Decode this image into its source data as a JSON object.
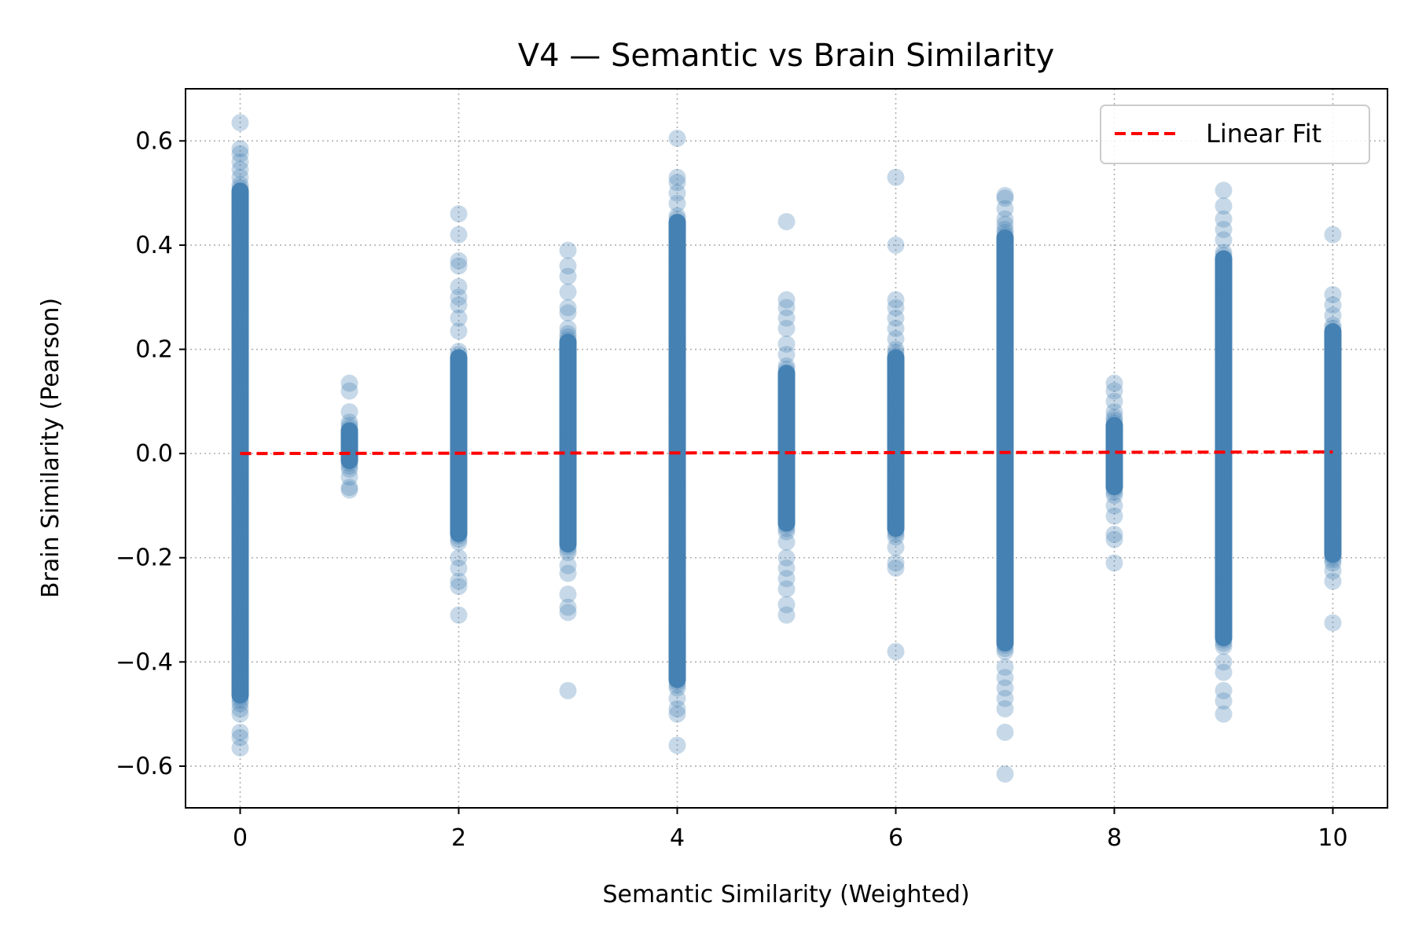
{
  "chart_data": {
    "type": "scatter",
    "title": "V4 — Semantic vs Brain Similarity",
    "xlabel": "Semantic Similarity (Weighted)",
    "ylabel": "Brain Similarity (Pearson)",
    "xlim": [
      -0.5,
      10.5
    ],
    "ylim": [
      -0.68,
      0.7
    ],
    "xticks": [
      0,
      2,
      4,
      6,
      8,
      10
    ],
    "yticks": [
      -0.6,
      -0.4,
      -0.2,
      0.0,
      0.2,
      0.4,
      0.6
    ],
    "xtick_labels": [
      "0",
      "2",
      "4",
      "6",
      "8",
      "10"
    ],
    "ytick_labels": [
      "−0.6",
      "−0.4",
      "−0.2",
      "0.0",
      "0.2",
      "0.4",
      "0.6"
    ],
    "grid": true,
    "legend_position": "top-right",
    "point_color": "#4682b4",
    "fit_color": "#ff0000",
    "series": [
      {
        "name": "",
        "kind": "points",
        "columns": [
          {
            "x": 0,
            "dense_range": [
              -0.48,
              0.52
            ],
            "points": [
              0.635,
              0.585,
              0.575,
              0.56,
              0.545,
              0.53,
              -0.49,
              -0.5,
              -0.535,
              -0.545,
              -0.565
            ]
          },
          {
            "x": 1,
            "dense_range": [
              -0.03,
              0.06
            ],
            "points": [
              0.135,
              0.12,
              0.08,
              -0.045,
              -0.065,
              -0.07
            ]
          },
          {
            "x": 2,
            "dense_range": [
              -0.17,
              0.2
            ],
            "points": [
              0.46,
              0.42,
              0.37,
              0.36,
              0.32,
              0.3,
              0.285,
              0.26,
              0.235,
              -0.2,
              -0.22,
              -0.245,
              -0.255,
              -0.31
            ]
          },
          {
            "x": 3,
            "dense_range": [
              -0.19,
              0.23
            ],
            "points": [
              0.39,
              0.36,
              0.34,
              0.31,
              0.28,
              0.27,
              0.24,
              -0.215,
              -0.23,
              -0.27,
              -0.295,
              -0.305,
              -0.455
            ]
          },
          {
            "x": 4,
            "dense_range": [
              -0.45,
              0.46
            ],
            "points": [
              0.605,
              0.53,
              0.52,
              0.5,
              0.48,
              -0.47,
              -0.49,
              -0.5,
              -0.56
            ]
          },
          {
            "x": 5,
            "dense_range": [
              -0.15,
              0.17
            ],
            "points": [
              0.445,
              0.295,
              0.28,
              0.26,
              0.24,
              0.21,
              0.19,
              -0.17,
              -0.2,
              -0.22,
              -0.24,
              -0.26,
              -0.29,
              -0.31
            ]
          },
          {
            "x": 6,
            "dense_range": [
              -0.16,
              0.2
            ],
            "points": [
              0.53,
              0.4,
              0.295,
              0.28,
              0.26,
              0.24,
              0.22,
              -0.18,
              -0.21,
              -0.22,
              -0.38
            ]
          },
          {
            "x": 7,
            "dense_range": [
              -0.38,
              0.43
            ],
            "points": [
              0.495,
              0.49,
              0.47,
              0.45,
              0.44,
              -0.41,
              -0.43,
              -0.45,
              -0.47,
              -0.49,
              -0.535,
              -0.615
            ]
          },
          {
            "x": 8,
            "dense_range": [
              -0.08,
              0.07
            ],
            "points": [
              0.135,
              0.12,
              0.1,
              0.08,
              -0.1,
              -0.12,
              -0.155,
              -0.165,
              -0.21
            ]
          },
          {
            "x": 9,
            "dense_range": [
              -0.37,
              0.39
            ],
            "points": [
              0.505,
              0.475,
              0.45,
              0.43,
              0.41,
              -0.4,
              -0.42,
              -0.455,
              -0.475,
              -0.5
            ]
          },
          {
            "x": 10,
            "dense_range": [
              -0.21,
              0.25
            ],
            "points": [
              0.42,
              0.305,
              0.285,
              0.265,
              -0.225,
              -0.245,
              -0.325
            ]
          }
        ]
      },
      {
        "name": "Linear Fit",
        "kind": "line",
        "x": [
          0,
          10
        ],
        "y": [
          0.0,
          0.003
        ]
      }
    ]
  }
}
